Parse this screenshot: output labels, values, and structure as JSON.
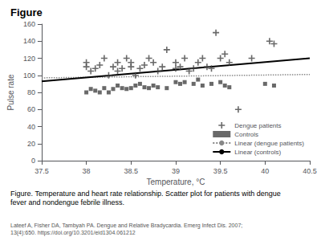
{
  "chart_data": {
    "type": "scatter",
    "title": "Figure",
    "xlabel": "Temperature, °C",
    "ylabel": "Pulse rate",
    "xlim": [
      37.5,
      40.5
    ],
    "ylim": [
      0,
      160
    ],
    "xticks": [
      37.5,
      38,
      38.5,
      39,
      39.5,
      40,
      40.5
    ],
    "yticks": [
      0,
      20,
      40,
      60,
      80,
      100,
      120,
      140,
      160
    ],
    "grid": false,
    "legend": "lower right",
    "annotations": [
      "Figure. Temperature and heart rate relationship. Scatter plot for patients with dengue\nfever and nondengue febrile illness.",
      "Lateef A, Fisher DA, Tambyah PA. Dengue and Relative Bradycardia. Emerg Infect Dis. 2007;13(4):650. https://doi.org/10.3201/eid1304.061212"
    ],
    "series": [
      {
        "name": "Dengue patients",
        "type": "scatter",
        "marker": "plus",
        "color": "#444444",
        "x": [
          38.0,
          38.0,
          38.05,
          38.1,
          38.15,
          38.2,
          38.25,
          38.3,
          38.35,
          38.35,
          38.4,
          38.45,
          38.5,
          38.5,
          38.55,
          38.6,
          38.65,
          38.7,
          38.75,
          38.8,
          38.85,
          38.9,
          39.0,
          39.0,
          39.05,
          39.1,
          39.15,
          39.2,
          39.25,
          39.3,
          39.35,
          39.4,
          39.45,
          39.5,
          39.55,
          39.6,
          39.7,
          39.85,
          40.05,
          40.1
        ],
        "values": [
          110,
          115,
          105,
          108,
          112,
          120,
          100,
          110,
          115,
          105,
          108,
          120,
          115,
          110,
          100,
          108,
          112,
          120,
          115,
          105,
          110,
          130,
          108,
          115,
          110,
          120,
          105,
          108,
          115,
          120,
          110,
          108,
          150,
          120,
          125,
          115,
          60,
          120,
          140,
          137
        ]
      },
      {
        "name": "Controls",
        "type": "scatter",
        "marker": "square",
        "color": "#444444",
        "x": [
          38.0,
          38.05,
          38.1,
          38.15,
          38.2,
          38.25,
          38.3,
          38.35,
          38.4,
          38.45,
          38.5,
          38.55,
          38.6,
          38.65,
          38.7,
          38.75,
          38.8,
          38.9,
          39.0,
          39.05,
          39.1,
          39.2,
          39.25,
          39.3,
          39.4,
          39.5,
          39.55,
          39.6,
          40.0,
          40.1
        ],
        "values": [
          80,
          84,
          82,
          80,
          85,
          80,
          84,
          88,
          85,
          84,
          85,
          88,
          90,
          86,
          85,
          88,
          86,
          85,
          92,
          90,
          92,
          90,
          95,
          88,
          90,
          92,
          88,
          86,
          90,
          88
        ]
      },
      {
        "name": "Linear (dengue patients)",
        "type": "line",
        "line_style": "dotted",
        "color": "#888888",
        "x": [
          37.5,
          40.5
        ],
        "values": [
          97,
          101
        ]
      },
      {
        "name": "Linear (controls)",
        "type": "line",
        "line_style": "solid",
        "color": "#000000",
        "x": [
          37.5,
          40.5
        ],
        "values": [
          93,
          120
        ]
      }
    ]
  }
}
